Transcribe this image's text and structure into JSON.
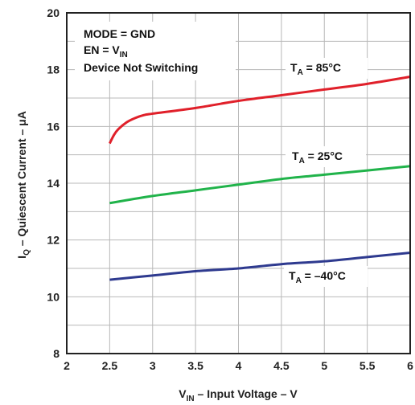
{
  "chart_data": {
    "type": "line",
    "xlabel": {
      "main": "V",
      "sub": "IN",
      "rest": " – Input Voltage – V"
    },
    "ylabel": {
      "main": "I",
      "sub": "Q",
      "rest": " – Quiescent Current – μA"
    },
    "xlim": [
      2,
      6
    ],
    "ylim": [
      8,
      20
    ],
    "xticks": [
      "2",
      "2.5",
      "3",
      "3.5",
      "4",
      "4.5",
      "5",
      "5.5",
      "6"
    ],
    "yticks": [
      "8",
      "10",
      "12",
      "14",
      "16",
      "18",
      "20"
    ],
    "grid": true,
    "conditions": [
      {
        "main": "MODE = GND",
        "sub": ""
      },
      {
        "main": "EN = V",
        "sub": "IN"
      },
      {
        "main": "Device Not Switching",
        "sub": ""
      }
    ],
    "series": [
      {
        "name": {
          "main": "T",
          "sub": "A",
          "rest": " = 85°C"
        },
        "color": "#e0202a",
        "x": [
          2.5,
          2.55,
          2.6,
          2.7,
          2.8,
          2.9,
          3.0,
          3.5,
          4.0,
          4.5,
          5.0,
          5.5,
          6.0
        ],
        "y": [
          15.4,
          15.7,
          15.9,
          16.15,
          16.3,
          16.4,
          16.45,
          16.65,
          16.9,
          17.1,
          17.3,
          17.5,
          17.75
        ]
      },
      {
        "name": {
          "main": "T",
          "sub": "A",
          "rest": " = 25°C"
        },
        "color": "#20b34a",
        "x": [
          2.5,
          3.0,
          3.5,
          4.0,
          4.5,
          5.0,
          5.5,
          6.0
        ],
        "y": [
          13.3,
          13.55,
          13.75,
          13.95,
          14.15,
          14.3,
          14.45,
          14.6
        ]
      },
      {
        "name": {
          "main": "T",
          "sub": "A",
          "rest": " = –40°C"
        },
        "color": "#2e3a8f",
        "x": [
          2.5,
          3.0,
          3.5,
          4.0,
          4.5,
          5.0,
          5.5,
          6.0
        ],
        "y": [
          10.6,
          10.75,
          10.9,
          11.0,
          11.15,
          11.25,
          11.4,
          11.55
        ]
      }
    ]
  }
}
